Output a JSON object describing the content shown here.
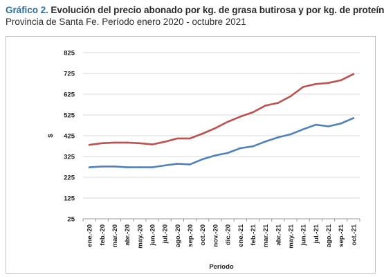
{
  "header": {
    "title_prefix": "Gráfico 2.",
    "title_text": "Evolución del precio abonado por kg. de grasa butirosa y por kg. de proteína.",
    "subtitle": "Provincia de Santa Fe. Período enero 2020 - octubre 2021"
  },
  "chart_data": {
    "type": "line",
    "xlabel": "Período",
    "ylabel": "$",
    "ylim": [
      25,
      825
    ],
    "yticks": [
      25,
      125,
      225,
      325,
      425,
      525,
      625,
      725,
      825
    ],
    "grid": true,
    "legend": "none",
    "categories": [
      "ene.-20",
      "feb.-20",
      "mar.-20",
      "abr.-20",
      "may.-20",
      "jun.-20",
      "jul.-20",
      "ago.-20",
      "sep.-20",
      "oct.-20",
      "nov.-20",
      "dic.-20",
      "ene.-21",
      "feb.-21",
      "mar.-21",
      "abr.-21",
      "may.-21",
      "jun.-21",
      "jul.-21",
      "ago.-21",
      "sep.-21",
      "oct.-21"
    ],
    "series": [
      {
        "color": "#c0504d",
        "values": [
          381,
          389,
          392,
          392,
          389,
          383,
          396,
          412,
          412,
          435,
          461,
          492,
          517,
          538,
          570,
          583,
          615,
          660,
          674,
          679,
          692,
          722
        ]
      },
      {
        "color": "#4f81bd",
        "values": [
          273,
          277,
          277,
          273,
          273,
          273,
          282,
          290,
          287,
          312,
          330,
          342,
          365,
          374,
          397,
          417,
          432,
          456,
          478,
          470,
          484,
          510
        ]
      }
    ]
  }
}
